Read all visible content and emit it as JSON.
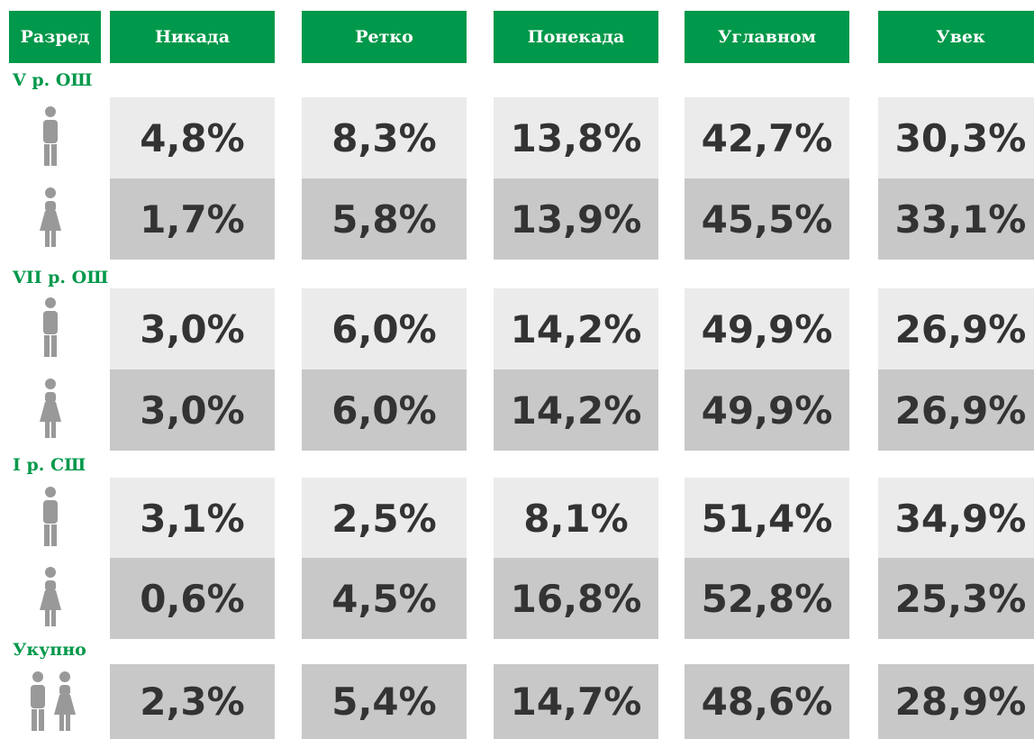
{
  "header": [
    "Разред",
    "Никада",
    "Ретко",
    "Понекада",
    "Углавном",
    "Увек"
  ],
  "groups": [
    {
      "label": "V р. ОШ",
      "rows": [
        [
          "4,8%",
          "8,3%",
          "13,8%",
          "42,7%",
          "30,3%"
        ],
        [
          "1,7%",
          "5,8%",
          "13,9%",
          "45,5%",
          "33,1%"
        ]
      ]
    },
    {
      "label": "VII р. ОШ",
      "rows": [
        [
          "3,0%",
          "6,0%",
          "14,2%",
          "49,9%",
          "26,9%"
        ],
        [
          "3,0%",
          "6,0%",
          "14,2%",
          "49,9%",
          "26,9%"
        ]
      ]
    },
    {
      "label": "I р. СШ",
      "rows": [
        [
          "3,1%",
          "2,5%",
          "8,1%",
          "51,4%",
          "34,9%"
        ],
        [
          "0,6%",
          "4,5%",
          "16,8%",
          "52,8%",
          "25,3%"
        ]
      ]
    },
    {
      "label": "Укупно",
      "rows": [
        [
          "2,3%",
          "5,4%",
          "14,7%",
          "48,6%",
          "28,9%"
        ]
      ]
    }
  ]
}
